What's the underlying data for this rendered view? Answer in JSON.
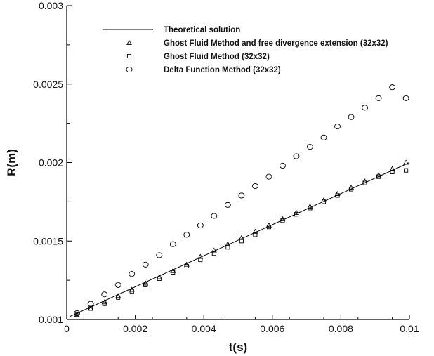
{
  "chart_data": {
    "type": "scatter",
    "title": "",
    "xlabel": "t(s)",
    "ylabel": "R(m)",
    "xlim": [
      0,
      0.01
    ],
    "ylim": [
      0.001,
      0.003
    ],
    "x_ticks": [
      "0",
      "0.002",
      "0.004",
      "0.006",
      "0.008",
      "0.01"
    ],
    "y_ticks": [
      "0.001",
      "0.0015",
      "0.002",
      "0.0025",
      "0.003"
    ],
    "grid": false,
    "legend_position": "top-left",
    "series": [
      {
        "name": "Theoretical solution",
        "marker": "line",
        "x": [
          0.0001,
          0.01
        ],
        "y": [
          0.00102,
          0.002
        ]
      },
      {
        "name": "Ghost Fluid Method and free divergence extension (32x32)",
        "marker": "triangle",
        "x": [
          0.0003,
          0.0007,
          0.0011,
          0.0015,
          0.0019,
          0.0023,
          0.0027,
          0.0031,
          0.0035,
          0.0039,
          0.0043,
          0.0047,
          0.0051,
          0.0055,
          0.0059,
          0.0063,
          0.0067,
          0.0071,
          0.0075,
          0.0079,
          0.0083,
          0.0087,
          0.0091,
          0.0095,
          0.0099
        ],
        "y": [
          0.00103,
          0.00107,
          0.00111,
          0.00115,
          0.00119,
          0.00123,
          0.00127,
          0.00131,
          0.00135,
          0.0014,
          0.00144,
          0.00148,
          0.00152,
          0.00156,
          0.0016,
          0.00164,
          0.00168,
          0.00172,
          0.00176,
          0.0018,
          0.00184,
          0.00188,
          0.00192,
          0.00196,
          0.002
        ]
      },
      {
        "name": "Ghost Fluid Method (32x32)",
        "marker": "square",
        "x": [
          0.0003,
          0.0007,
          0.0011,
          0.0015,
          0.0019,
          0.0023,
          0.0027,
          0.0031,
          0.0035,
          0.0039,
          0.0043,
          0.0047,
          0.0051,
          0.0055,
          0.0059,
          0.0063,
          0.0067,
          0.0071,
          0.0075,
          0.0079,
          0.0083,
          0.0087,
          0.0091,
          0.0095,
          0.0099
        ],
        "y": [
          0.00103,
          0.00107,
          0.0011,
          0.00114,
          0.00118,
          0.00122,
          0.00126,
          0.0013,
          0.00134,
          0.00138,
          0.00142,
          0.00146,
          0.0015,
          0.00154,
          0.00159,
          0.00163,
          0.00167,
          0.00171,
          0.00175,
          0.00179,
          0.00183,
          0.00187,
          0.00191,
          0.00194,
          0.00195
        ]
      },
      {
        "name": "Delta Function Method (32x32)",
        "marker": "circle",
        "x": [
          0.0003,
          0.0007,
          0.0011,
          0.0015,
          0.0019,
          0.0023,
          0.0027,
          0.0031,
          0.0035,
          0.0039,
          0.0043,
          0.0047,
          0.0051,
          0.0055,
          0.0059,
          0.0063,
          0.0067,
          0.0071,
          0.0075,
          0.0079,
          0.0083,
          0.0087,
          0.0091,
          0.0095,
          0.0099
        ],
        "y": [
          0.00104,
          0.0011,
          0.00116,
          0.00122,
          0.00129,
          0.00135,
          0.00141,
          0.00148,
          0.00154,
          0.0016,
          0.00166,
          0.00173,
          0.00179,
          0.00185,
          0.00191,
          0.00198,
          0.00204,
          0.0021,
          0.00216,
          0.00223,
          0.00229,
          0.00235,
          0.00241,
          0.00248,
          0.00241
        ]
      }
    ]
  }
}
